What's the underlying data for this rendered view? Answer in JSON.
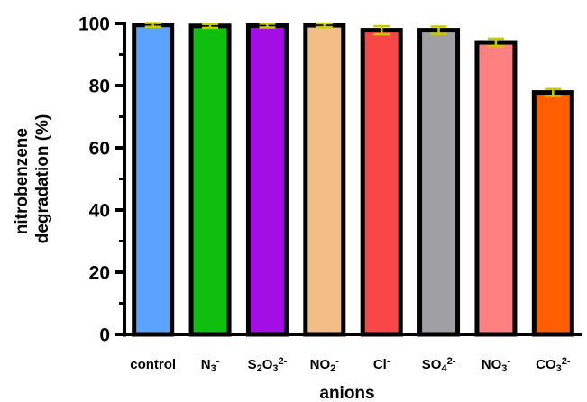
{
  "chart_data": {
    "type": "bar",
    "categories": [
      {
        "id": "control",
        "parts": [
          {
            "t": "control"
          }
        ]
      },
      {
        "id": "N3",
        "parts": [
          {
            "t": "N"
          },
          {
            "t": "3",
            "s": "sub"
          },
          {
            "t": "-",
            "s": "sup"
          }
        ]
      },
      {
        "id": "S2O3",
        "parts": [
          {
            "t": "S"
          },
          {
            "t": "2",
            "s": "sub"
          },
          {
            "t": "O"
          },
          {
            "t": "3",
            "s": "sub"
          },
          {
            "t": "2-",
            "s": "sup"
          }
        ]
      },
      {
        "id": "NO2",
        "parts": [
          {
            "t": "NO"
          },
          {
            "t": "2",
            "s": "sub"
          },
          {
            "t": "-",
            "s": "sup"
          }
        ]
      },
      {
        "id": "Cl",
        "parts": [
          {
            "t": "Cl"
          },
          {
            "t": "-",
            "s": "sup"
          }
        ]
      },
      {
        "id": "SO4",
        "parts": [
          {
            "t": "SO"
          },
          {
            "t": "4",
            "s": "sub"
          },
          {
            "t": "2-",
            "s": "sup"
          }
        ]
      },
      {
        "id": "NO3",
        "parts": [
          {
            "t": "NO"
          },
          {
            "t": "3",
            "s": "sub"
          },
          {
            "t": "-",
            "s": "sup"
          }
        ]
      },
      {
        "id": "CO3",
        "parts": [
          {
            "t": "CO"
          },
          {
            "t": "3",
            "s": "sub"
          },
          {
            "t": "2-",
            "s": "sup"
          }
        ]
      }
    ],
    "values": [
      99.5,
      99.2,
      99.3,
      99.4,
      97.8,
      97.8,
      93.9,
      77.8
    ],
    "errors": [
      0.6,
      0.6,
      0.6,
      0.6,
      1.3,
      1.2,
      1.2,
      1.1
    ],
    "bar_colors": [
      "#5aa3ff",
      "#0fbf0f",
      "#a20ee3",
      "#f3bd87",
      "#f94646",
      "#a0a0a4",
      "#ff8080",
      "#ff5f00"
    ],
    "error_bar_color": "#c8c800",
    "xlabel": "anions",
    "ylabel": [
      "nitrobenzene",
      "degradation (%)"
    ],
    "ylim": [
      0,
      100
    ],
    "yticks": [
      0,
      20,
      40,
      60,
      80,
      100
    ],
    "grid": false
  }
}
